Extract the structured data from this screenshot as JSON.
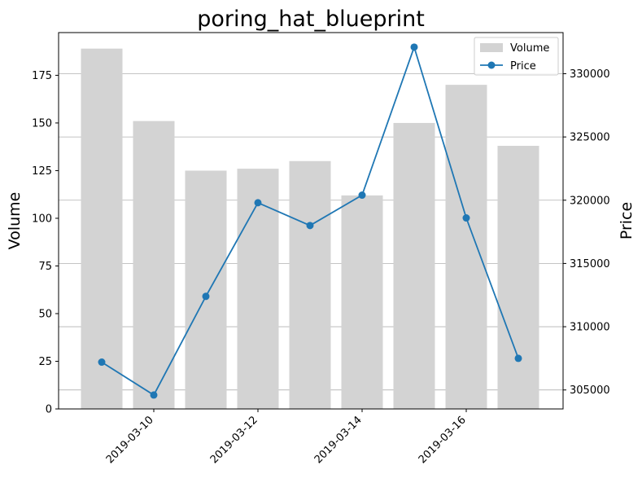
{
  "chart_data": {
    "type": "bar+line",
    "title": "poring_hat_blueprint",
    "x": [
      "2019-03-09",
      "2019-03-10",
      "2019-03-11",
      "2019-03-12",
      "2019-03-13",
      "2019-03-14",
      "2019-03-15",
      "2019-03-16",
      "2019-03-17"
    ],
    "x_tick_labels": [
      "2019-03-10",
      "2019-03-12",
      "2019-03-14",
      "2019-03-16"
    ],
    "series": [
      {
        "name": "Volume",
        "kind": "bar",
        "axis": "left",
        "color": "#d3d3d3",
        "values": [
          189,
          151,
          125,
          126,
          130,
          112,
          150,
          170,
          138
        ]
      },
      {
        "name": "Price",
        "kind": "line",
        "axis": "right",
        "color": "#1f77b4",
        "values": [
          307200,
          304600,
          312400,
          319800,
          318000,
          320400,
          332100,
          318600,
          307500
        ]
      }
    ],
    "ylabel_left": "Volume",
    "ylabel_right": "Price",
    "ylim_left": [
      0,
      197.4
    ],
    "yticks_left": [
      0,
      25,
      50,
      75,
      100,
      125,
      150,
      175
    ],
    "ylim_right": [
      303500,
      333250
    ],
    "yticks_right": [
      305000,
      310000,
      315000,
      320000,
      325000,
      330000
    ],
    "grid": "horizontal on right axis",
    "legend": "top-right"
  }
}
